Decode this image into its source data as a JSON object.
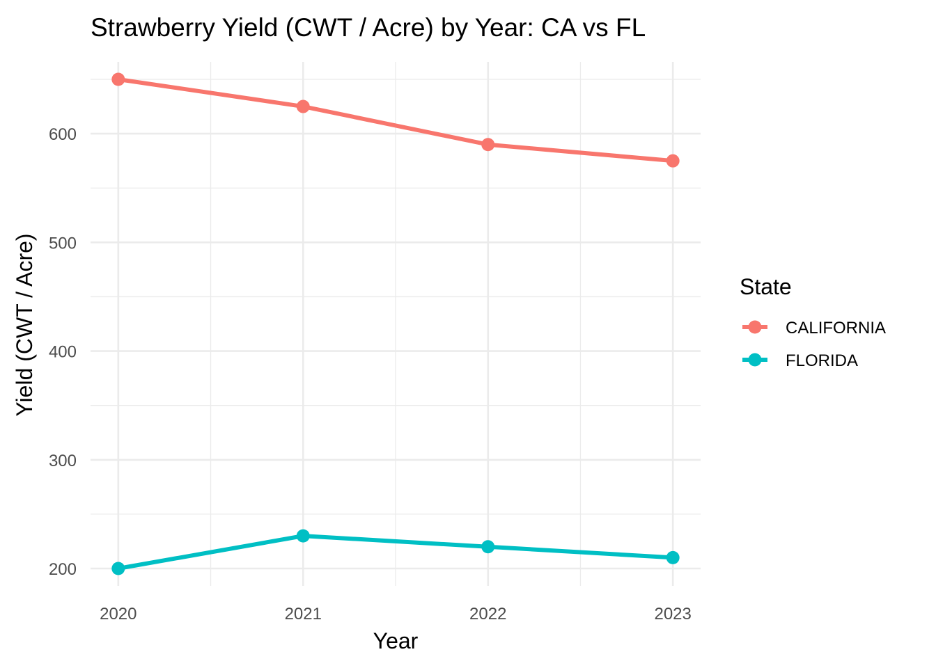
{
  "chart_data": {
    "type": "line",
    "title": "Strawberry Yield (CWT / Acre) by Year: CA vs FL",
    "xlabel": "Year",
    "ylabel": "Yield (CWT / Acre)",
    "x": [
      2020,
      2021,
      2022,
      2023
    ],
    "x_tick_labels": [
      "2020",
      "2021",
      "2022",
      "2023"
    ],
    "y_ticks": [
      200,
      300,
      400,
      500,
      600
    ],
    "y_tick_labels": [
      "200",
      "300",
      "400",
      "500",
      "600"
    ],
    "xlim": [
      2019.85,
      2023.15
    ],
    "ylim": [
      184,
      666
    ],
    "grid": true,
    "legend": {
      "title": "State",
      "placement": "right"
    },
    "series": [
      {
        "name": "CALIFORNIA",
        "color": "#F8766D",
        "values": [
          650,
          625,
          590,
          575
        ]
      },
      {
        "name": "FLORIDA",
        "color": "#00BFC4",
        "values": [
          200,
          230,
          220,
          210
        ]
      }
    ]
  }
}
